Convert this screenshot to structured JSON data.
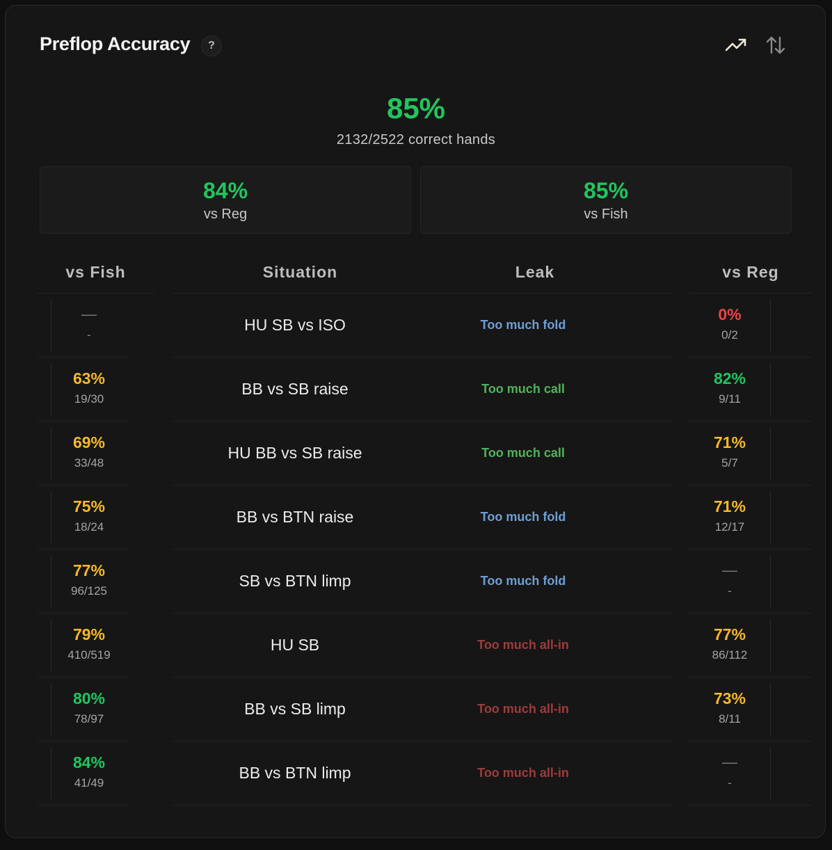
{
  "title": "Preflop Accuracy",
  "help_label": "?",
  "overall": {
    "pct": "85%",
    "sub": "2132/2522 correct hands"
  },
  "vs_reg": {
    "pct": "84%",
    "label": "vs Reg"
  },
  "vs_fish": {
    "pct": "85%",
    "label": "vs Fish"
  },
  "columns": {
    "fish": "vs Fish",
    "situation": "Situation",
    "leak": "Leak",
    "reg": "vs Reg"
  },
  "rows": [
    {
      "fish_pct": "—",
      "fish_frac": "-",
      "situation": "HU SB vs ISO",
      "leak": "Too much fold",
      "reg_pct": "0%",
      "reg_frac": "0/2"
    },
    {
      "fish_pct": "63%",
      "fish_frac": "19/30",
      "situation": "BB vs SB raise",
      "leak": "Too much call",
      "reg_pct": "82%",
      "reg_frac": "9/11"
    },
    {
      "fish_pct": "69%",
      "fish_frac": "33/48",
      "situation": "HU BB vs SB raise",
      "leak": "Too much call",
      "reg_pct": "71%",
      "reg_frac": "5/7"
    },
    {
      "fish_pct": "75%",
      "fish_frac": "18/24",
      "situation": "BB vs BTN raise",
      "leak": "Too much fold",
      "reg_pct": "71%",
      "reg_frac": "12/17"
    },
    {
      "fish_pct": "77%",
      "fish_frac": "96/125",
      "situation": "SB vs BTN limp",
      "leak": "Too much fold",
      "reg_pct": "—",
      "reg_frac": "-"
    },
    {
      "fish_pct": "79%",
      "fish_frac": "410/519",
      "situation": "HU SB",
      "leak": "Too much all-in",
      "reg_pct": "77%",
      "reg_frac": "86/112"
    },
    {
      "fish_pct": "80%",
      "fish_frac": "78/97",
      "situation": "BB vs SB limp",
      "leak": "Too much all-in",
      "reg_pct": "73%",
      "reg_frac": "8/11"
    },
    {
      "fish_pct": "84%",
      "fish_frac": "41/49",
      "situation": "BB vs BTN limp",
      "leak": "Too much all-in",
      "reg_pct": "—",
      "reg_frac": "-"
    }
  ],
  "colors": {
    "green": "#22c55e",
    "amber": "#f5b82e",
    "red": "#ef4444",
    "fold": "#6b9fd4",
    "call": "#4fb45a",
    "allin": "#a03a3a"
  }
}
